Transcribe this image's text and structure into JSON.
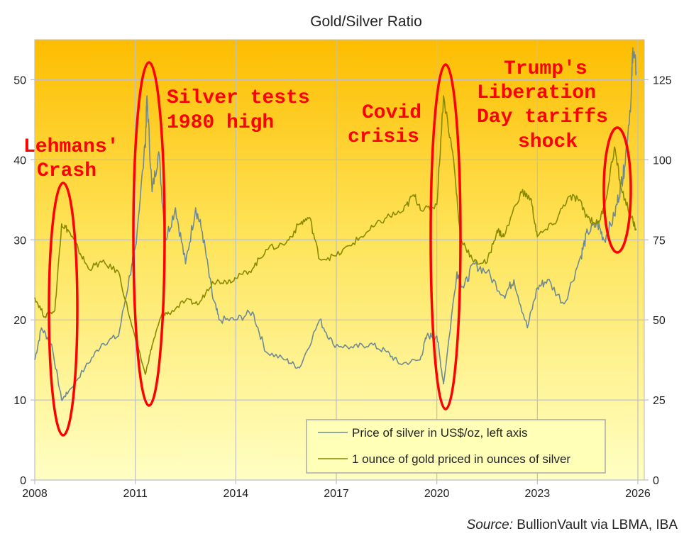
{
  "chart_data": {
    "type": "line",
    "title": "Gold/Silver Ratio",
    "xlabel": "",
    "ylabel_left": "",
    "ylabel_right": "",
    "xlim": [
      2008,
      2026
    ],
    "ylim_left": [
      0,
      55
    ],
    "ylim_right": [
      0,
      137.5
    ],
    "x_ticks": [
      "2008",
      "2011",
      "2014",
      "2017",
      "2020",
      "2023",
      "2026"
    ],
    "y_ticks_left": [
      "0",
      "10",
      "20",
      "30",
      "40",
      "50"
    ],
    "y_ticks_right": [
      "0",
      "25",
      "50",
      "75",
      "100",
      "125"
    ],
    "grid": true,
    "legend_placement": "bottom-right",
    "series": [
      {
        "name": "Price of silver in US$/oz, left axis",
        "axis": "left",
        "color": "#6f8a94",
        "x": [
          2008.0,
          2008.2,
          2008.5,
          2008.8,
          2009.0,
          2009.5,
          2010.0,
          2010.5,
          2010.9,
          2011.0,
          2011.3,
          2011.35,
          2011.5,
          2011.7,
          2011.9,
          2012.2,
          2012.5,
          2012.8,
          2013.0,
          2013.3,
          2013.5,
          2014.0,
          2014.5,
          2014.9,
          2015.5,
          2015.9,
          2016.5,
          2016.9,
          2017.5,
          2018.0,
          2018.5,
          2018.9,
          2019.5,
          2019.7,
          2020.0,
          2020.2,
          2020.6,
          2020.8,
          2021.1,
          2021.5,
          2022.0,
          2022.3,
          2022.7,
          2023.0,
          2023.3,
          2023.8,
          2024.3,
          2024.5,
          2024.8,
          2025.0,
          2025.3,
          2025.5,
          2025.6,
          2025.8,
          2025.85,
          2025.95
        ],
        "y": [
          15,
          19,
          17,
          10,
          11,
          14,
          17,
          18,
          27,
          29,
          42,
          48,
          36,
          41,
          30,
          34,
          27,
          34,
          31,
          23,
          20,
          20,
          21,
          16,
          15,
          14,
          20,
          17,
          16.5,
          17,
          16,
          14.5,
          15,
          18,
          18,
          12,
          26,
          24,
          27,
          26,
          23,
          25,
          19,
          24,
          25,
          22,
          28,
          31,
          32,
          30,
          33,
          37,
          39,
          48,
          54,
          51
        ]
      },
      {
        "name": "1 ounce of gold priced in ounces of silver",
        "axis": "right",
        "color": "#8a8a00",
        "x": [
          2008.0,
          2008.3,
          2008.6,
          2008.8,
          2009.0,
          2009.3,
          2009.6,
          2010.0,
          2010.5,
          2010.9,
          2011.3,
          2011.5,
          2011.8,
          2012.0,
          2012.5,
          2012.9,
          2013.3,
          2013.7,
          2014.0,
          2014.5,
          2014.9,
          2015.5,
          2015.9,
          2016.2,
          2016.5,
          2017.0,
          2017.5,
          2018.0,
          2018.5,
          2019.0,
          2019.3,
          2019.6,
          2020.0,
          2020.2,
          2020.5,
          2020.7,
          2021.1,
          2021.5,
          2021.8,
          2022.0,
          2022.5,
          2022.8,
          2023.0,
          2023.5,
          2023.9,
          2024.2,
          2024.5,
          2024.8,
          2025.0,
          2025.3,
          2025.5,
          2025.8,
          2025.95
        ],
        "y": [
          57,
          51,
          53,
          80,
          78,
          72,
          66,
          68,
          65,
          48,
          33,
          42,
          52,
          52,
          56,
          55,
          62,
          62,
          63,
          66,
          72,
          74,
          80,
          82,
          69,
          70,
          74,
          78,
          82,
          84,
          89,
          84,
          86,
          120,
          100,
          76,
          68,
          68,
          78,
          76,
          90,
          88,
          76,
          80,
          88,
          88,
          82,
          80,
          85,
          104,
          91,
          82,
          78
        ]
      }
    ],
    "annotations": [
      {
        "id": "lehman",
        "lines": [
          "Lehmans'",
          "Crash"
        ]
      },
      {
        "id": "silver",
        "lines": [
          "Silver tests",
          "1980 high"
        ]
      },
      {
        "id": "covid",
        "lines": [
          "Covid",
          "crisis"
        ]
      },
      {
        "id": "trump",
        "lines": [
          "Trump's",
          "Liberation",
          "Day tariffs",
          "shock"
        ]
      }
    ],
    "source_label": "Source:",
    "source_text": " BullionVault via LBMA, IBA"
  }
}
